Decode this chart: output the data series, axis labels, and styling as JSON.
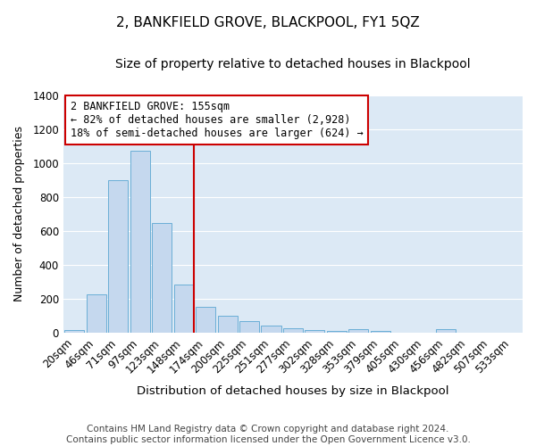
{
  "title": "2, BANKFIELD GROVE, BLACKPOOL, FY1 5QZ",
  "subtitle": "Size of property relative to detached houses in Blackpool",
  "xlabel": "Distribution of detached houses by size in Blackpool",
  "ylabel": "Number of detached properties",
  "footnote1": "Contains HM Land Registry data © Crown copyright and database right 2024.",
  "footnote2": "Contains public sector information licensed under the Open Government Licence v3.0.",
  "categories": [
    "20sqm",
    "46sqm",
    "71sqm",
    "97sqm",
    "123sqm",
    "148sqm",
    "174sqm",
    "200sqm",
    "225sqm",
    "251sqm",
    "277sqm",
    "302sqm",
    "328sqm",
    "353sqm",
    "379sqm",
    "405sqm",
    "430sqm",
    "456sqm",
    "482sqm",
    "507sqm",
    "533sqm"
  ],
  "values": [
    15,
    225,
    900,
    1070,
    648,
    283,
    155,
    103,
    68,
    43,
    28,
    15,
    13,
    20,
    11,
    0,
    0,
    20,
    0,
    0,
    0
  ],
  "bar_color": "#c5d8ee",
  "bar_edge_color": "#6aaed6",
  "bg_color": "#dce9f5",
  "fig_bg_color": "#ffffff",
  "grid_color": "#ffffff",
  "ylim": [
    0,
    1400
  ],
  "yticks": [
    0,
    200,
    400,
    600,
    800,
    1000,
    1200,
    1400
  ],
  "vline_color": "#cc0000",
  "annotation_title": "2 BANKFIELD GROVE: 155sqm",
  "annotation_line1": "← 82% of detached houses are smaller (2,928)",
  "annotation_line2": "18% of semi-detached houses are larger (624) →",
  "annotation_box_color": "#cc0000",
  "title_fontsize": 11,
  "subtitle_fontsize": 10,
  "xlabel_fontsize": 9.5,
  "ylabel_fontsize": 9,
  "tick_fontsize": 8.5,
  "annotation_fontsize": 8.5,
  "footnote_fontsize": 7.5
}
